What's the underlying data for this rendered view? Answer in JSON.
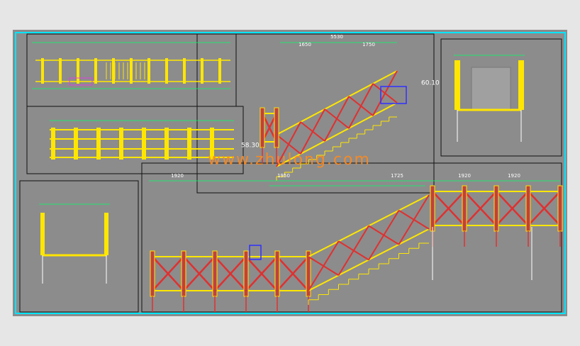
{
  "dimensions": {
    "top_total": "5530",
    "top_left": "1650",
    "top_right": "1750",
    "bottom": [
      "1920",
      "1950",
      "1725",
      "1920",
      "1920"
    ]
  },
  "elevations": [
    "60.10",
    "58.30"
  ],
  "watermark": "www.zhulong.com"
}
